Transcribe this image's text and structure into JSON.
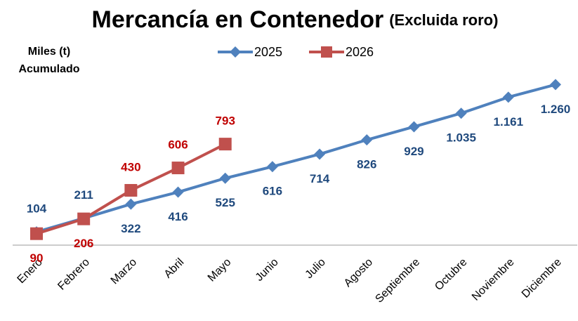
{
  "chart_data": {
    "type": "line",
    "title": "Mercancía en Contenedor",
    "subtitle": "(Excluida roro)",
    "y_label": [
      "Miles (t)",
      "Acumulado"
    ],
    "categories": [
      "Enero",
      "Febrero",
      "Marzo",
      "Abril",
      "Mayo",
      "Junio",
      "Julio",
      "Agosto",
      "Septiembre",
      "Octubre",
      "Noviembre",
      "Diciembre"
    ],
    "series": [
      {
        "name": "2025",
        "color": "#4f81bd",
        "label_color": "#1f497d",
        "values": [
          104,
          211,
          322,
          416,
          525,
          616,
          714,
          826,
          929,
          1035,
          1161,
          1260
        ],
        "value_labels": [
          "104",
          "211",
          "322",
          "416",
          "525",
          "616",
          "714",
          "826",
          "929",
          "1.035",
          "1.161",
          "1.260"
        ]
      },
      {
        "name": "2026",
        "color": "#c0504d",
        "label_color": "#c00000",
        "values": [
          90,
          206,
          430,
          606,
          793,
          null,
          null,
          null,
          null,
          null,
          null,
          null
        ],
        "value_labels": [
          "90",
          "206",
          "430",
          "606",
          "793",
          null,
          null,
          null,
          null,
          null,
          null,
          null
        ]
      }
    ],
    "ylim": [
      0,
      1400
    ],
    "legend": "top"
  }
}
